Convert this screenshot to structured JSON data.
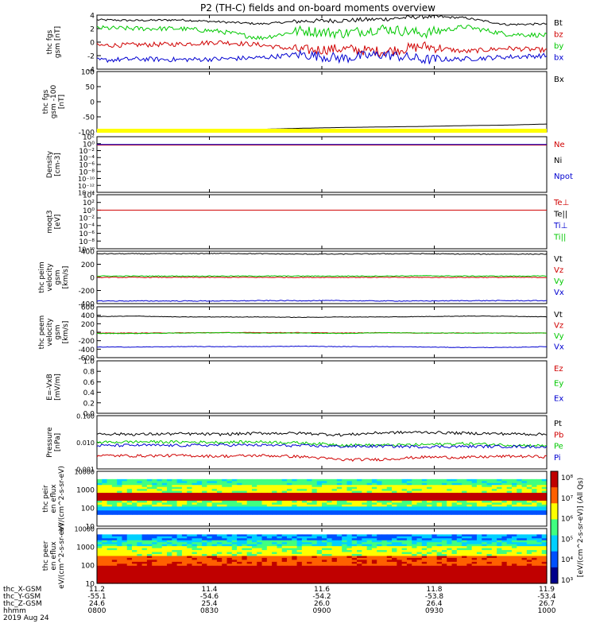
{
  "title": "P2 (TH-C) fields and on-board moments overview",
  "x_ticks": [
    "0800",
    "0830",
    "0900",
    "0930",
    "1000"
  ],
  "footer": {
    "rows": [
      {
        "label": "thc_X-GSM",
        "values": [
          "11.2",
          "11.4",
          "11.6",
          "11.8",
          "11.9"
        ]
      },
      {
        "label": "thc_Y-GSM",
        "values": [
          "-55.1",
          "-54.6",
          "-54.2",
          "-53.8",
          "-53.4"
        ]
      },
      {
        "label": "thc_Z-GSM",
        "values": [
          "24.6",
          "25.4",
          "26.0",
          "26.4",
          "26.7"
        ]
      },
      {
        "label": "hhmm",
        "values": [
          "0800",
          "0830",
          "0900",
          "0930",
          "1000"
        ]
      }
    ],
    "date": "2019 Aug 24"
  },
  "colors": {
    "black": "#000000",
    "red": "#d00000",
    "green": "#00c800",
    "blue": "#0000d0",
    "yellow": "#ffff00"
  },
  "chart_data": [
    {
      "type": "line",
      "ylabel": "thc fgs gsm [nT]",
      "ylim": [
        -4,
        4
      ],
      "yticks": [
        "4",
        "2",
        "0",
        "-2",
        "-4"
      ],
      "series": [
        {
          "name": "Bt",
          "color": "black",
          "values": [
            3.3,
            3.2,
            3.3,
            3.0,
            2.7,
            3.1,
            3.2,
            3.4,
            3.8,
            3.6,
            2.6,
            2.7
          ]
        },
        {
          "name": "bz",
          "color": "red",
          "values": [
            -0.5,
            -0.4,
            -0.3,
            0.0,
            -0.4,
            -1.2,
            -1.0,
            -1.4,
            -0.6,
            -1.4,
            -0.9,
            -1.2
          ]
        },
        {
          "name": "by",
          "color": "green",
          "values": [
            2.1,
            2.0,
            2.0,
            1.6,
            0.6,
            1.7,
            1.3,
            2.0,
            1.3,
            2.3,
            1.2,
            1.0
          ]
        },
        {
          "name": "bx",
          "color": "blue",
          "values": [
            -2.7,
            -2.5,
            -2.6,
            -2.5,
            -2.3,
            -1.8,
            -2.4,
            -1.8,
            -2.6,
            -2.5,
            -2.2,
            -2.0
          ]
        }
      ]
    },
    {
      "type": "line",
      "ylabel": "thc fgs gsm -100 [nT]",
      "ylim": [
        -130,
        100
      ],
      "yticks": [
        "100",
        "50",
        "0",
        "-50",
        "-100"
      ],
      "series": [
        {
          "name": "Bx",
          "color": "black",
          "values": [
            -130,
            -129,
            -127,
            -125,
            -120,
            -116,
            -113,
            -111,
            -109,
            -106,
            -104,
            -100
          ]
        }
      ]
    },
    {
      "type": "line",
      "ylabel": "Density [cm-3]",
      "log": true,
      "yticks": [
        "10²",
        "10⁰",
        "10⁻²",
        "10⁻⁴",
        "10⁻⁶",
        "10⁻⁸",
        "10⁻¹⁰",
        "10⁻¹²",
        "10⁻¹⁴"
      ],
      "series": [
        {
          "name": "Ne",
          "color": "red",
          "values": [
            0.4,
            0.4,
            0.4,
            0.4,
            0.4,
            0.4,
            0.4,
            0.4,
            0.4,
            0.4,
            0.4,
            0.4
          ]
        },
        {
          "name": "Ni",
          "color": "black",
          "values": []
        },
        {
          "name": "Npot",
          "color": "blue",
          "values": [
            0.6,
            0.6,
            0.6,
            0.6,
            0.6,
            0.6,
            0.6,
            0.6,
            0.6,
            0.6,
            0.6,
            0.6
          ]
        }
      ]
    },
    {
      "type": "line",
      "ylabel": "moqt3 [eV]",
      "log": true,
      "yticks": [
        "10⁴",
        "10²",
        "10⁰",
        "10⁻²",
        "10⁻⁴",
        "10⁻⁶",
        "10⁻⁸",
        "10⁻¹⁰"
      ],
      "series": [
        {
          "name": "Te⊥",
          "color": "red",
          "values": [
            1,
            1,
            1,
            1,
            1,
            1,
            1,
            1,
            1,
            1,
            1,
            1
          ]
        },
        {
          "name": "Te||",
          "color": "black",
          "values": []
        },
        {
          "name": "Ti⊥",
          "color": "blue",
          "values": []
        },
        {
          "name": "Ti||",
          "color": "green",
          "values": []
        }
      ]
    },
    {
      "type": "line",
      "ylabel": "thc peim velocity gsm [km/s]",
      "ylim": [
        -400,
        400
      ],
      "yticks": [
        "400",
        "200",
        "0",
        "-200",
        "-400"
      ],
      "series": [
        {
          "name": "Vt",
          "color": "black",
          "values": [
            360,
            360,
            360,
            365,
            360,
            355,
            355,
            360,
            360,
            355,
            355,
            355
          ]
        },
        {
          "name": "Vz",
          "color": "red",
          "values": [
            0,
            0,
            0,
            0,
            0,
            0,
            0,
            0,
            0,
            0,
            0,
            0
          ]
        },
        {
          "name": "Vy",
          "color": "green",
          "values": [
            20,
            20,
            20,
            20,
            20,
            20,
            20,
            20,
            25,
            20,
            20,
            20
          ]
        },
        {
          "name": "Vx",
          "color": "blue",
          "values": [
            -360,
            -360,
            -360,
            -360,
            -355,
            -355,
            -355,
            -360,
            -360,
            -355,
            -355,
            -355
          ]
        }
      ]
    },
    {
      "type": "line",
      "ylabel": "thc peem velocity gsm [km/s]",
      "ylim": [
        -600,
        600
      ],
      "yticks": [
        "600",
        "400",
        "200",
        "0",
        "-200",
        "-400",
        "-600"
      ],
      "series": [
        {
          "name": "Vt",
          "color": "black",
          "values": [
            370,
            380,
            360,
            360,
            360,
            350,
            360,
            360,
            370,
            380,
            380,
            360
          ]
        },
        {
          "name": "Vz",
          "color": "red",
          "values": [
            -20,
            -20,
            -15,
            -10,
            -10,
            -10,
            -20,
            -10,
            -20,
            -20,
            -20,
            -20
          ]
        },
        {
          "name": "Vy",
          "color": "green",
          "values": [
            -30,
            -30,
            -20,
            -10,
            -20,
            -20,
            -30,
            -10,
            -20,
            -20,
            -20,
            -20
          ]
        },
        {
          "name": "Vx",
          "color": "blue",
          "values": [
            -350,
            -350,
            -340,
            -340,
            -340,
            -330,
            -340,
            -340,
            -350,
            -360,
            -360,
            -340
          ]
        }
      ]
    },
    {
      "type": "line",
      "ylabel": "E=-VxB [mV/m]",
      "ylim": [
        0,
        1
      ],
      "yticks": [
        "1.0",
        "0.8",
        "0.6",
        "0.4",
        "0.2",
        "0.0"
      ],
      "series": [
        {
          "name": "Ez",
          "color": "red",
          "values": []
        },
        {
          "name": "Ey",
          "color": "green",
          "values": []
        },
        {
          "name": "Ex",
          "color": "blue",
          "values": []
        }
      ]
    },
    {
      "type": "line",
      "ylabel": "Pressure [nPa]",
      "log": true,
      "ylim": [
        0.001,
        0.1
      ],
      "yticks": [
        "0.100",
        "0.010",
        "0.001"
      ],
      "series": [
        {
          "name": "Pt",
          "color": "black",
          "values": [
            0.021,
            0.02,
            0.021,
            0.02,
            0.022,
            0.022,
            0.019,
            0.023,
            0.024,
            0.022,
            0.021,
            0.02
          ]
        },
        {
          "name": "Pb",
          "color": "red",
          "values": [
            0.0032,
            0.0031,
            0.0032,
            0.003,
            0.0032,
            0.0029,
            0.0022,
            0.0023,
            0.0028,
            0.0027,
            0.003,
            0.0029
          ]
        },
        {
          "name": "Pe",
          "color": "green",
          "values": [
            0.01,
            0.0105,
            0.0103,
            0.01,
            0.0105,
            0.0095,
            0.008,
            0.0078,
            0.0082,
            0.009,
            0.008,
            0.0074
          ]
        },
        {
          "name": "Pi",
          "color": "blue",
          "values": [
            0.0075,
            0.0078,
            0.0076,
            0.008,
            0.0078,
            0.0075,
            0.007,
            0.0072,
            0.0068,
            0.007,
            0.007,
            0.0068
          ]
        }
      ]
    },
    {
      "type": "heatmap",
      "ylabel": "thc peir en eflux eV/(cm^2-s-sr-eV)",
      "log": true,
      "ylim": [
        3,
        30000
      ],
      "yticks": [
        "10000",
        "1000",
        "100",
        "10"
      ]
    },
    {
      "type": "heatmap",
      "ylabel": "thc peer en eflux eV/(cm^2-s-sr-eV)",
      "log": true,
      "ylim": [
        5,
        12000
      ],
      "yticks": [
        "10000",
        "1000",
        "100",
        "10"
      ]
    }
  ],
  "colorbar": {
    "label": "[eV/(cm^2-s-sr-eV)] (All Qs)",
    "ticks": [
      "10⁸",
      "10⁷",
      "10⁶",
      "10⁵",
      "10⁴",
      "10³"
    ]
  }
}
